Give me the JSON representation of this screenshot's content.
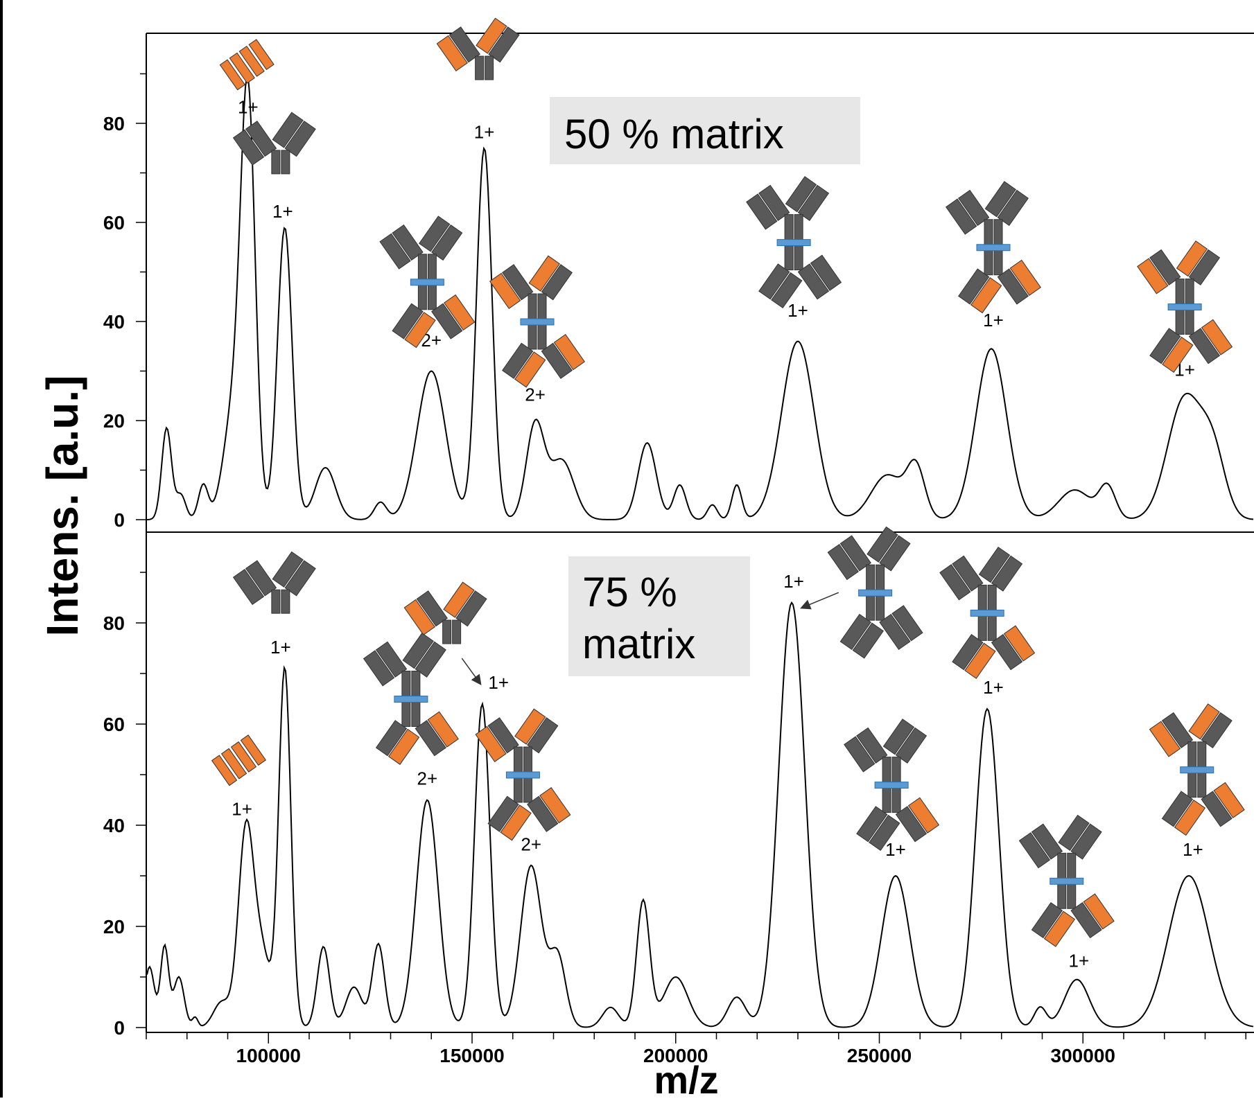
{
  "chart_data": {
    "type": "line",
    "xlabel": "m/z",
    "ylabel": "Intens. [a.u.]",
    "xlim": [
      70000,
      342000
    ],
    "ylim": [
      -1,
      100
    ],
    "x_ticks": [
      100000,
      150000,
      200000,
      250000,
      300000
    ],
    "x_tick_labels": [
      "100000",
      "150000",
      "200000",
      "250000",
      "300000"
    ],
    "y_ticks": [
      0,
      20,
      40,
      60,
      80
    ],
    "y_tick_labels": [
      "0",
      "20",
      "40",
      "60",
      "80"
    ],
    "grid": false,
    "legend": "none",
    "line_color": "#000000",
    "panels": [
      {
        "label": "50 % matrix",
        "peaks": [
          {
            "x": 75000,
            "y": 18.5,
            "w": 1200
          },
          {
            "x": 78500,
            "y": 5,
            "w": 1200
          },
          {
            "x": 84000,
            "y": 7,
            "w": 1200
          },
          {
            "x": 95000,
            "y": 81,
            "w": 1800
          },
          {
            "x": 91500,
            "y": 22,
            "w": 2500
          },
          {
            "x": 104000,
            "y": 59,
            "w": 1800
          },
          {
            "x": 114000,
            "y": 10.5,
            "w": 2500
          },
          {
            "x": 127500,
            "y": 3.5,
            "w": 1500
          },
          {
            "x": 140000,
            "y": 30,
            "w": 3500
          },
          {
            "x": 153000,
            "y": 75,
            "w": 1900
          },
          {
            "x": 165500,
            "y": 19,
            "w": 2200
          },
          {
            "x": 172000,
            "y": 12,
            "w": 3000
          },
          {
            "x": 193000,
            "y": 15.5,
            "w": 2200
          },
          {
            "x": 201000,
            "y": 7,
            "w": 1500
          },
          {
            "x": 209000,
            "y": 3,
            "w": 1200
          },
          {
            "x": 215000,
            "y": 7,
            "w": 1200
          },
          {
            "x": 230000,
            "y": 36,
            "w": 4000
          },
          {
            "x": 252000,
            "y": 9,
            "w": 4000
          },
          {
            "x": 259000,
            "y": 10,
            "w": 2200
          },
          {
            "x": 277500,
            "y": 34.5,
            "w": 3800
          },
          {
            "x": 298000,
            "y": 6,
            "w": 4000
          },
          {
            "x": 306000,
            "y": 6.5,
            "w": 2000
          },
          {
            "x": 325000,
            "y": 24.5,
            "w": 4200
          },
          {
            "x": 332000,
            "y": 12,
            "w": 3000
          }
        ],
        "charge_labels": [
          {
            "text": "1+",
            "x": 95000,
            "y": 82
          },
          {
            "text": "1+",
            "x": 103500,
            "y": 61
          },
          {
            "text": "2+",
            "x": 140000,
            "y": 35
          },
          {
            "text": "1+",
            "x": 153000,
            "y": 77
          },
          {
            "text": "2+",
            "x": 165500,
            "y": 24
          },
          {
            "text": "1+",
            "x": 230000,
            "y": 41
          },
          {
            "text": "1+",
            "x": 278000,
            "y": 39
          },
          {
            "text": "1+",
            "x": 325000,
            "y": 29
          }
        ]
      },
      {
        "label": "75 % matrix",
        "peaks": [
          {
            "x": 70800,
            "y": 12,
            "w": 1200
          },
          {
            "x": 74500,
            "y": 16,
            "w": 1000
          },
          {
            "x": 78000,
            "y": 10,
            "w": 1300
          },
          {
            "x": 82000,
            "y": 2,
            "w": 700
          },
          {
            "x": 88500,
            "y": 5,
            "w": 2000
          },
          {
            "x": 94500,
            "y": 39,
            "w": 1900
          },
          {
            "x": 98500,
            "y": 14,
            "w": 2000
          },
          {
            "x": 104000,
            "y": 71,
            "w": 1500
          },
          {
            "x": 113500,
            "y": 16,
            "w": 1500
          },
          {
            "x": 121000,
            "y": 8,
            "w": 2000
          },
          {
            "x": 127000,
            "y": 16.5,
            "w": 1500
          },
          {
            "x": 139000,
            "y": 45,
            "w": 2700
          },
          {
            "x": 152500,
            "y": 64,
            "w": 1900
          },
          {
            "x": 164500,
            "y": 32,
            "w": 2600
          },
          {
            "x": 171000,
            "y": 14,
            "w": 2000
          },
          {
            "x": 184000,
            "y": 4,
            "w": 2000
          },
          {
            "x": 192000,
            "y": 25,
            "w": 1600
          },
          {
            "x": 200000,
            "y": 10,
            "w": 3000
          },
          {
            "x": 215000,
            "y": 6,
            "w": 2200
          },
          {
            "x": 228500,
            "y": 84,
            "w": 3200
          },
          {
            "x": 254000,
            "y": 30,
            "w": 3500
          },
          {
            "x": 276500,
            "y": 63,
            "w": 2900
          },
          {
            "x": 289500,
            "y": 4,
            "w": 1500
          },
          {
            "x": 298500,
            "y": 9.5,
            "w": 3000
          },
          {
            "x": 326000,
            "y": 30,
            "w": 5000
          }
        ],
        "charge_labels": [
          {
            "text": "1+",
            "x": 93500,
            "y": 42
          },
          {
            "text": "1+",
            "x": 103000,
            "y": 74
          },
          {
            "text": "2+",
            "x": 139000,
            "y": 48
          },
          {
            "text": "1+",
            "x": 156500,
            "y": 67
          },
          {
            "text": "2+",
            "x": 164500,
            "y": 35
          },
          {
            "text": "1+",
            "x": 229000,
            "y": 87
          },
          {
            "text": "1+",
            "x": 254000,
            "y": 34
          },
          {
            "text": "1+",
            "x": 278000,
            "y": 66
          },
          {
            "text": "1+",
            "x": 299000,
            "y": 12
          },
          {
            "text": "1+",
            "x": 327000,
            "y": 34
          }
        ]
      }
    ],
    "icons": {
      "colors": {
        "heavy_chain": "#595959",
        "light_chain": "#ED7D31",
        "linker": "#5B9BD5"
      },
      "top": [
        {
          "kind": "light-chain-stack",
          "x": 95000,
          "y": 92
        },
        {
          "kind": "antibody-grey",
          "x": 103000,
          "y": 74
        },
        {
          "kind": "antibody-half-orange",
          "x": 153000,
          "y": 93
        },
        {
          "kind": "dimer-orange-bottom",
          "x": 139000,
          "y": 48
        },
        {
          "kind": "dimer-full-orange",
          "x": 166000,
          "y": 40
        },
        {
          "kind": "dimer-grey",
          "x": 229000,
          "y": 56
        },
        {
          "kind": "dimer-orange-bottom",
          "x": 278000,
          "y": 55
        },
        {
          "kind": "dimer-full-orange",
          "x": 325000,
          "y": 43
        }
      ],
      "bottom": [
        {
          "kind": "light-chain-stack",
          "x": 93000,
          "y": 53
        },
        {
          "kind": "antibody-grey",
          "x": 103000,
          "y": 86
        },
        {
          "kind": "antibody-half-orange",
          "x": 145000,
          "y": 80
        },
        {
          "kind": "dimer-orange-bottom",
          "x": 135000,
          "y": 65
        },
        {
          "kind": "dimer-full-orange",
          "x": 162500,
          "y": 50
        },
        {
          "kind": "dimer-grey",
          "x": 249000,
          "y": 86
        },
        {
          "kind": "dimer-orange-bottom",
          "x": 276500,
          "y": 82
        },
        {
          "kind": "dimer-mixed",
          "x": 253000,
          "y": 48
        },
        {
          "kind": "dimer-orange-bottom",
          "x": 296000,
          "y": 29
        },
        {
          "kind": "dimer-full-orange",
          "x": 328000,
          "y": 51
        }
      ]
    },
    "arrows": [
      {
        "from_x": 240000,
        "from_y": 86,
        "to_x": 231000,
        "to_y": 83
      },
      {
        "from_x": 147500,
        "from_y": 73,
        "to_x": 152000,
        "to_y": 68
      }
    ]
  }
}
